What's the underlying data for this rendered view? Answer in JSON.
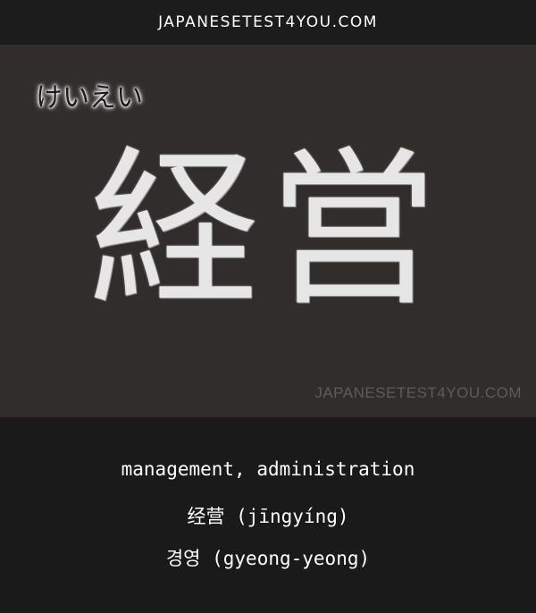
{
  "header": {
    "site": "JAPANESETEST4YOU.COM"
  },
  "card": {
    "reading": "けいえい",
    "word": "経営",
    "watermark": "JAPANESETEST4YOU.COM"
  },
  "meanings": {
    "english": "management, administration",
    "chinese": "经营 (jīngyíng)",
    "korean": "경영 (gyeong-yeong)"
  }
}
